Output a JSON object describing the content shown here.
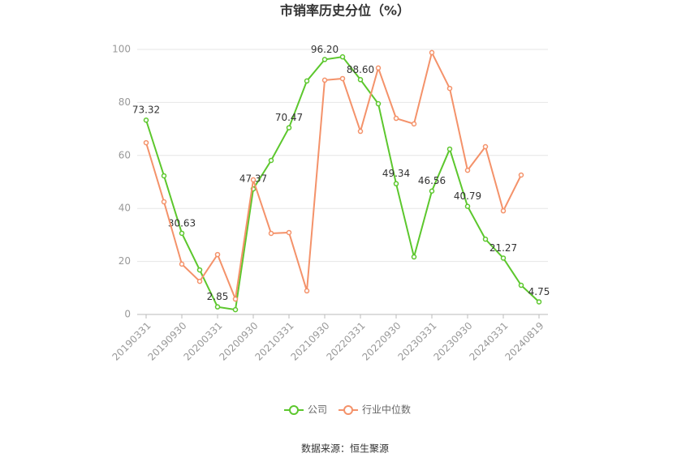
{
  "chart_data": {
    "type": "line",
    "title": "市销率历史分位（%）",
    "categories": [
      "20190331",
      null,
      "20190930",
      null,
      "20200331",
      null,
      "20200930",
      null,
      "20210331",
      null,
      "20210930",
      null,
      "20220331",
      null,
      "20220930",
      null,
      "20230331",
      null,
      "20230930",
      null,
      "20240331",
      null,
      "20240819"
    ],
    "series": [
      {
        "name": "公司",
        "color": "#5cc72d",
        "values": [
          73.32,
          52.3,
          30.63,
          16.8,
          2.85,
          1.8,
          47.37,
          58.1,
          70.47,
          88.1,
          96.2,
          97.2,
          88.6,
          79.5,
          49.34,
          21.7,
          46.56,
          62.4,
          40.79,
          28.4,
          21.27,
          11.0,
          4.75
        ],
        "value_labels": [
          "73.32",
          null,
          "30.63",
          null,
          "2.85",
          null,
          "47.37",
          null,
          "70.47",
          null,
          "96.20",
          null,
          "88.60",
          null,
          "49.34",
          null,
          "46.56",
          null,
          "40.79",
          null,
          "21.27",
          null,
          "4.75"
        ]
      },
      {
        "name": "行业中位数",
        "color": "#f4926a",
        "values": [
          64.8,
          42.5,
          19.0,
          12.5,
          22.6,
          5.8,
          50.8,
          30.6,
          30.9,
          8.9,
          88.4,
          89.0,
          69.1,
          93.0,
          74.0,
          71.9,
          98.8,
          85.3,
          54.4,
          63.3,
          39.1,
          52.6,
          null
        ]
      }
    ],
    "ylim": [
      0,
      100
    ],
    "yticks": [
      0,
      20,
      40,
      60,
      80,
      100
    ],
    "grid": true,
    "legend": "bottom",
    "source": "数据来源：恒生聚源"
  }
}
